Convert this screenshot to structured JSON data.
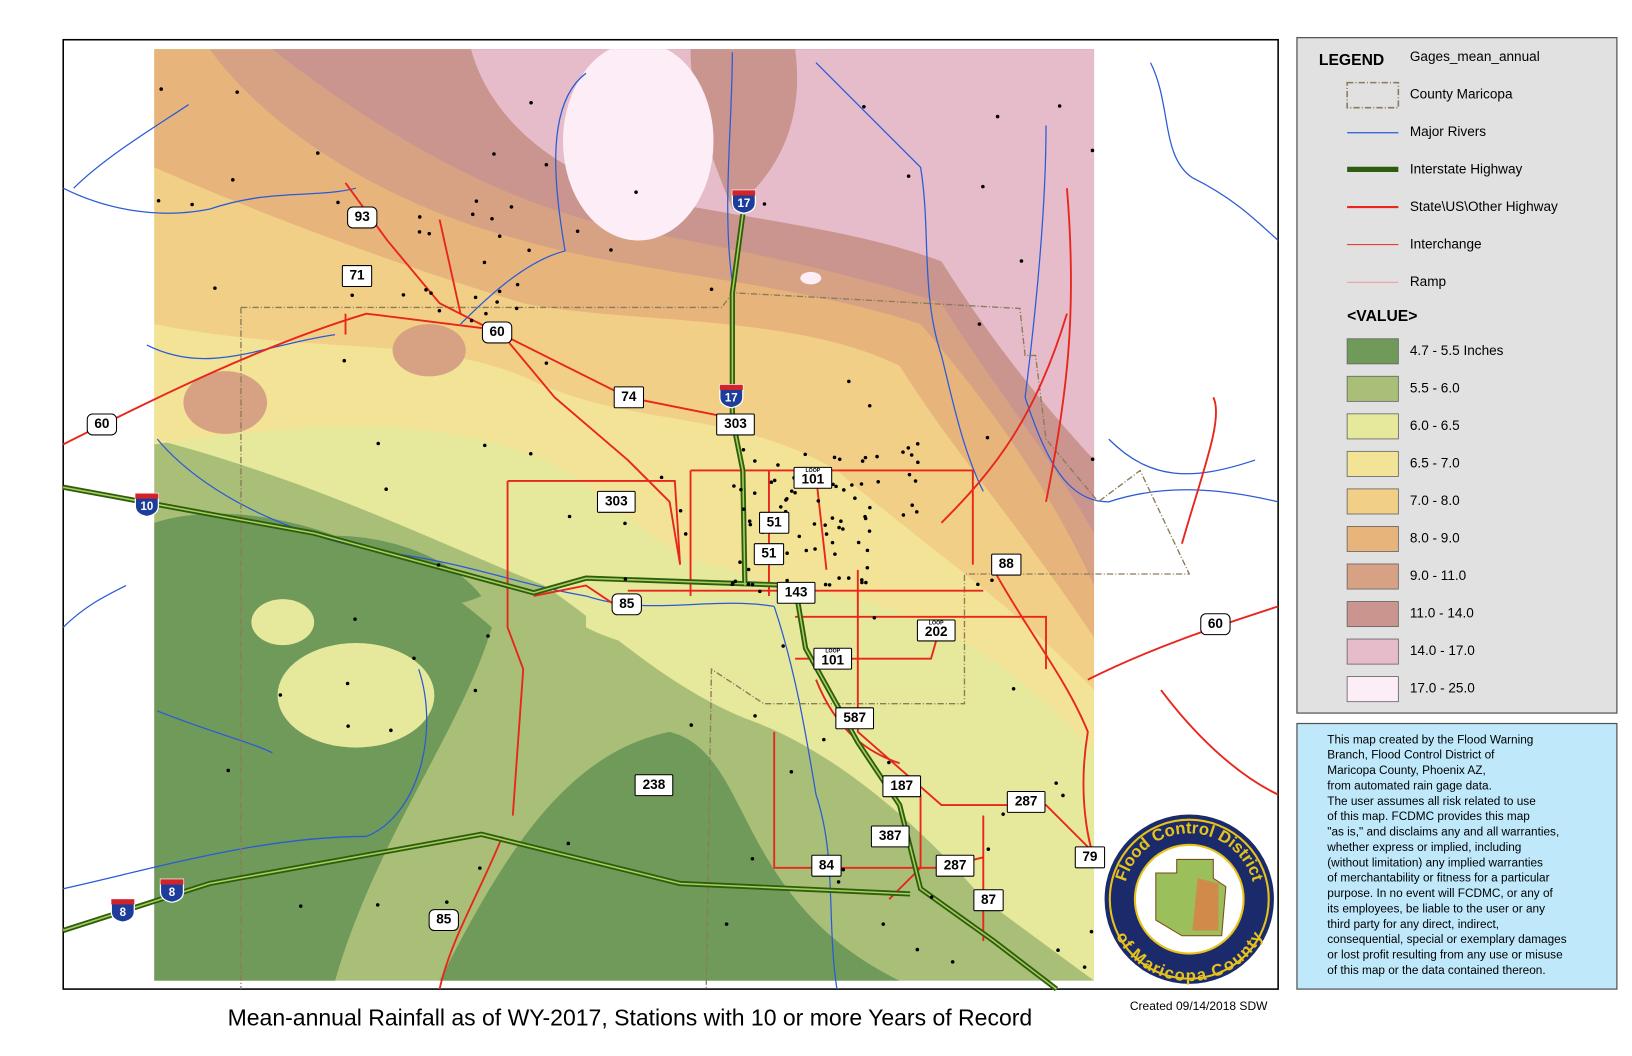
{
  "title": "Mean-annual Rainfall as of WY-2017, Stations with 10 or more Years of Record",
  "created": "Created 09/14/2018 SDW",
  "legend": {
    "heading": "LEGEND",
    "layer": "Gages_mean_annual",
    "items": [
      "County Maricopa",
      "Major Rivers",
      "Interstate Highway",
      "State\\US\\Other Highway",
      "Interchange",
      "Ramp"
    ],
    "value_heading": "<VALUE>",
    "classes": [
      {
        "label": "4.7 - 5.5 Inches",
        "color": "#6f9a5a"
      },
      {
        "label": "5.5 - 6.0",
        "color": "#a9bf77"
      },
      {
        "label": "6.0 - 6.5",
        "color": "#e6e89c"
      },
      {
        "label": "6.5 - 7.0",
        "color": "#f2e396"
      },
      {
        "label": "7.0 - 8.0",
        "color": "#f2cf86"
      },
      {
        "label": "8.0 - 9.0",
        "color": "#e7b57c"
      },
      {
        "label": "9.0 - 11.0",
        "color": "#d6a283"
      },
      {
        "label": "11.0 - 14.0",
        "color": "#c9958e"
      },
      {
        "label": "14.0 - 17.0",
        "color": "#e6bccb"
      },
      {
        "label": "17.0 - 25.0",
        "color": "#fcedf6"
      }
    ]
  },
  "disclaimer": [
    "This map created by the Flood Warning",
    "Branch, Flood Control District of",
    "Maricopa County, Phoenix AZ,",
    "from automated rain gage data.",
    "The user assumes all risk related to use",
    "of this map. FCDMC provides this map",
    "\"as is,\" and disclaims any and all warranties,",
    "whether express or implied, including",
    "(without limitation) any implied warranties",
    "of merchantability or fitness for a particular",
    "purpose. In no event will FCDMC, or any of",
    "its employees, be liable to the user or any",
    "third party for any direct, indirect,",
    "consequential, special or exemplary damages",
    "or lost profit resulting from any use or misuse",
    "of this map or the data contained thereon."
  ],
  "logo": {
    "top": "Flood Control District",
    "bottom": "of Maricopa County"
  },
  "shields": [
    {
      "label": "17"
    },
    {
      "label": "17"
    },
    {
      "label": "10"
    },
    {
      "label": "8"
    },
    {
      "label": "8"
    },
    {
      "label": "93"
    },
    {
      "label": "71"
    },
    {
      "label": "60"
    },
    {
      "label": "60"
    },
    {
      "label": "74"
    },
    {
      "label": "303"
    },
    {
      "label": "101",
      "prefix": "LOOP"
    },
    {
      "label": "303"
    },
    {
      "label": "51"
    },
    {
      "label": "51"
    },
    {
      "label": "88"
    },
    {
      "label": "143"
    },
    {
      "label": "85"
    },
    {
      "label": "202",
      "prefix": "LOOP"
    },
    {
      "label": "101",
      "prefix": "LOOP"
    },
    {
      "label": "60"
    },
    {
      "label": "587"
    },
    {
      "label": "238"
    },
    {
      "label": "187"
    },
    {
      "label": "287"
    },
    {
      "label": "387"
    },
    {
      "label": "84"
    },
    {
      "label": "287"
    },
    {
      "label": "79"
    },
    {
      "label": "87"
    },
    {
      "label": "85"
    }
  ]
}
